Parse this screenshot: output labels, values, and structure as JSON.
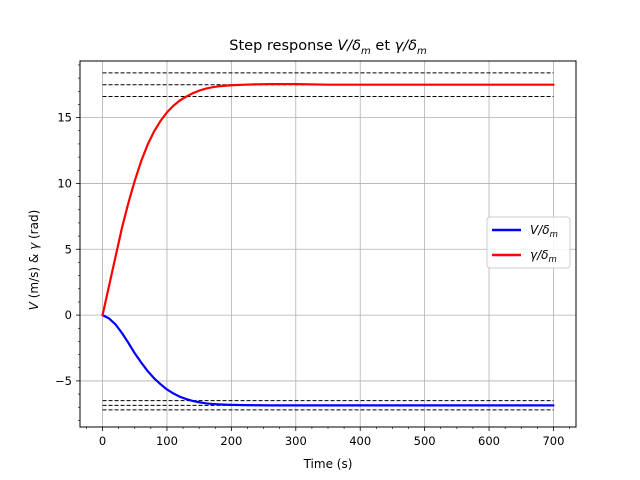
{
  "chart_data": {
    "type": "line",
    "title": "Step response V/δm et γ/δm",
    "title_parts": {
      "prefix": "Step response ",
      "v_main": "V/δ",
      "v_sub": "m",
      "mid": " et ",
      "g_main": "γ/δ",
      "g_sub": "m"
    },
    "xlabel": "Time (s)",
    "ylabel": "V (m/s) & γ (rad)",
    "ylabel_parts": {
      "v": "V",
      "unit1": " (m/s) & ",
      "g": "γ",
      "unit2": " (rad)"
    },
    "xlim": [
      -35,
      735
    ],
    "ylim": [
      -8.5,
      19.3
    ],
    "xticks": [
      0,
      100,
      200,
      300,
      400,
      500,
      600,
      700
    ],
    "yticks": [
      -5,
      0,
      5,
      10,
      15
    ],
    "ytick_labels": [
      "−5",
      "0",
      "5",
      "10",
      "15"
    ],
    "grid": true,
    "legend_placement": "center-right",
    "series": [
      {
        "name": "V/δm",
        "name_main": "V/δ",
        "name_sub": "m",
        "color": "#0000ff",
        "x": [
          0,
          10,
          20,
          30,
          40,
          50,
          60,
          70,
          80,
          90,
          100,
          110,
          120,
          130,
          140,
          150,
          160,
          170,
          180,
          190,
          200,
          220,
          240,
          260,
          280,
          300,
          350,
          400,
          500,
          600,
          700
        ],
        "y": [
          0,
          -0.25,
          -0.7,
          -1.35,
          -2.1,
          -2.9,
          -3.6,
          -4.25,
          -4.8,
          -5.25,
          -5.65,
          -5.95,
          -6.2,
          -6.38,
          -6.52,
          -6.62,
          -6.7,
          -6.75,
          -6.78,
          -6.8,
          -6.82,
          -6.84,
          -6.85,
          -6.86,
          -6.86,
          -6.86,
          -6.86,
          -6.86,
          -6.86,
          -6.86,
          -6.86
        ]
      },
      {
        "name": "γ/δm",
        "name_main": "γ/δ",
        "name_sub": "m",
        "color": "#ff0000",
        "x": [
          0,
          10,
          20,
          30,
          40,
          50,
          60,
          70,
          80,
          90,
          100,
          110,
          120,
          130,
          140,
          150,
          160,
          170,
          180,
          190,
          200,
          220,
          240,
          260,
          280,
          300,
          350,
          400,
          500,
          600,
          700
        ],
        "y": [
          0,
          2.2,
          4.4,
          6.6,
          8.5,
          10.2,
          11.7,
          12.95,
          13.95,
          14.75,
          15.4,
          15.9,
          16.3,
          16.6,
          16.85,
          17.05,
          17.2,
          17.3,
          17.38,
          17.42,
          17.46,
          17.5,
          17.53,
          17.55,
          17.55,
          17.55,
          17.5,
          17.5,
          17.5,
          17.5,
          17.5
        ]
      }
    ],
    "reference_lines": {
      "color": "#000000",
      "style": "dashed",
      "x_range": [
        0,
        700
      ],
      "y_values": [
        18.4,
        17.5,
        16.6,
        -6.5,
        -6.86,
        -7.2
      ]
    }
  }
}
